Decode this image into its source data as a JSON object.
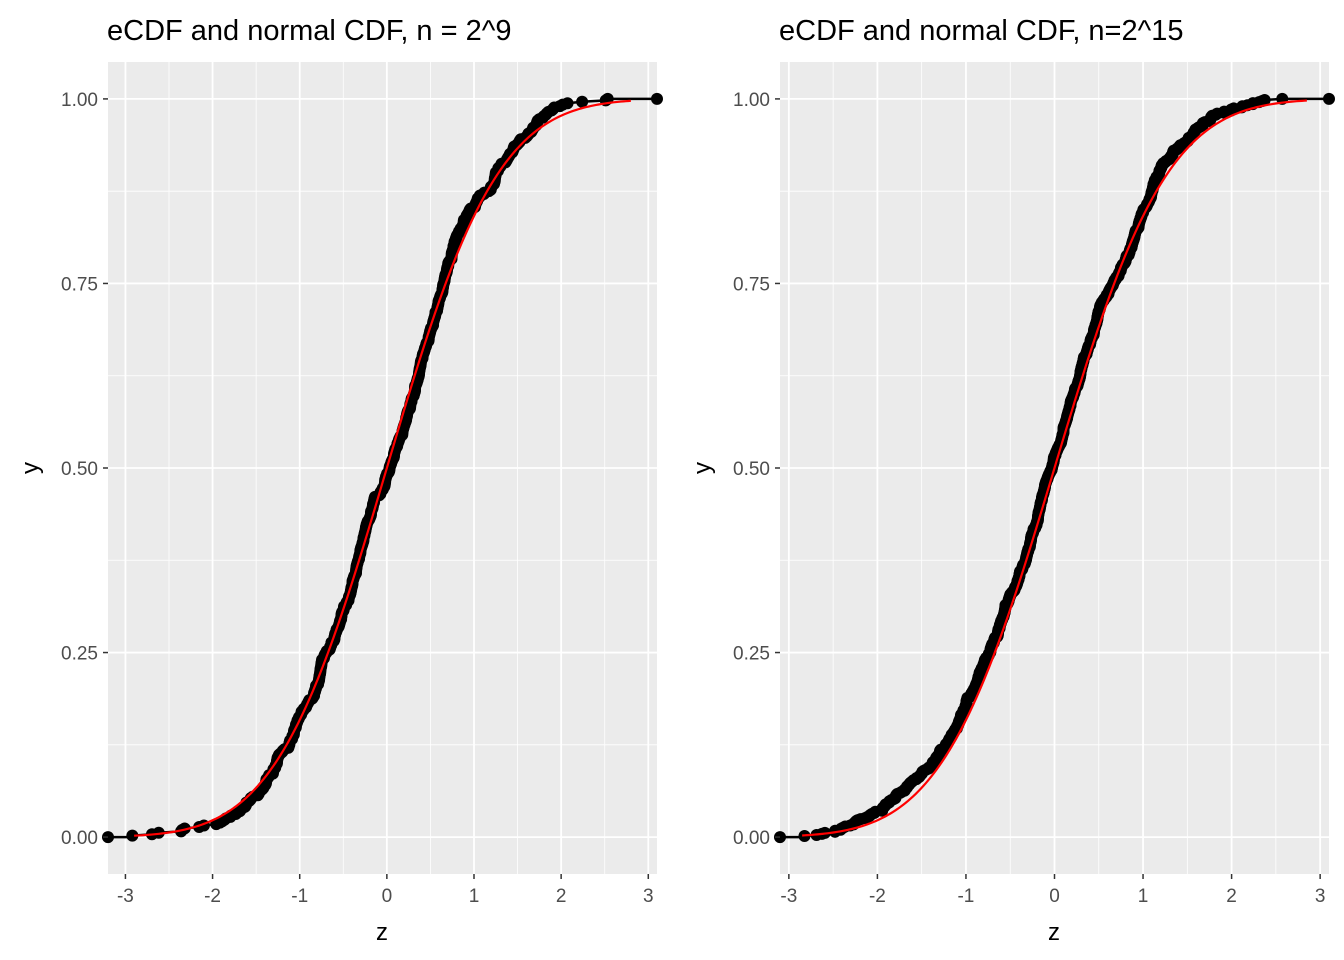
{
  "chart_data": [
    {
      "type": "scatter",
      "title": "eCDF and normal CDF, n = 2^9",
      "xlabel": "z",
      "ylabel": "y",
      "xlim": [
        -3.2,
        3.1
      ],
      "ylim": [
        -0.05,
        1.05
      ],
      "x_ticks": [
        -3,
        -2,
        -1,
        0,
        1,
        2,
        3
      ],
      "x_tick_labels": [
        "-3",
        "-2",
        "-1",
        "0",
        "1",
        "2",
        "3"
      ],
      "y_ticks": [
        0,
        0.25,
        0.5,
        0.75,
        1
      ],
      "y_tick_labels": [
        "0.00",
        "0.25",
        "0.50",
        "0.75",
        "1.00"
      ],
      "grid": true,
      "sample_size": 512,
      "z_range": [
        -3.2,
        3.1
      ],
      "series": [
        {
          "name": "eCDF",
          "style": "points + step",
          "color": "#000000"
        },
        {
          "name": "normal CDF",
          "style": "line",
          "color": "#ff0000",
          "z_range": [
            -2.9,
            2.8
          ]
        }
      ]
    },
    {
      "type": "scatter",
      "title": "eCDF and normal CDF, n=2^15",
      "xlabel": "z",
      "ylabel": "y",
      "xlim": [
        -3.1,
        3.1
      ],
      "ylim": [
        -0.05,
        1.05
      ],
      "x_ticks": [
        -3,
        -2,
        -1,
        0,
        1,
        2,
        3
      ],
      "x_tick_labels": [
        "-3",
        "-2",
        "-1",
        "0",
        "1",
        "2",
        "3"
      ],
      "y_ticks": [
        0,
        0.25,
        0.5,
        0.75,
        1
      ],
      "y_tick_labels": [
        "0.00",
        "0.25",
        "0.50",
        "0.75",
        "1.00"
      ],
      "grid": true,
      "sample_size": 32768,
      "z_range": [
        -3.1,
        3.1
      ],
      "series": [
        {
          "name": "eCDF",
          "style": "points + step",
          "color": "#000000"
        },
        {
          "name": "normal CDF",
          "style": "line",
          "color": "#ff0000",
          "z_range": [
            -2.85,
            2.85
          ]
        }
      ]
    }
  ]
}
